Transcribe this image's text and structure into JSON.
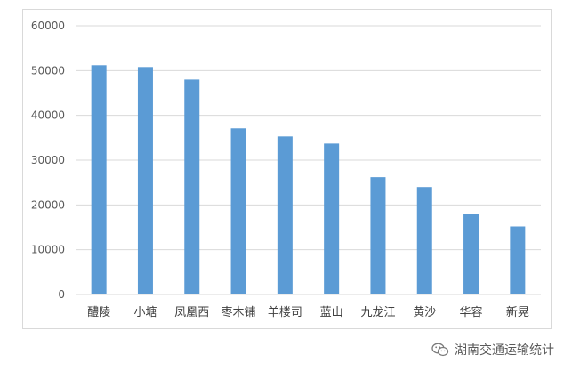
{
  "chart_data": {
    "type": "bar",
    "categories": [
      "醴陵",
      "小塘",
      "凤凰西",
      "枣木铺",
      "羊楼司",
      "蓝山",
      "九龙江",
      "黄沙",
      "华容",
      "新晃"
    ],
    "values": [
      51200,
      50800,
      48000,
      37100,
      35300,
      33700,
      26200,
      24000,
      17900,
      15200
    ],
    "ylim": [
      0,
      60000
    ],
    "yticks": [
      "0",
      "10000",
      "20000",
      "30000",
      "40000",
      "50000",
      "60000"
    ],
    "title": "",
    "xlabel": "",
    "ylabel": "",
    "grid": true,
    "legend": "none",
    "bar_color": "#5b9bd5",
    "grid_color": "#d9d9d9"
  },
  "watermark": {
    "icon": "wechat-icon",
    "text": "湖南交通运输统计"
  }
}
